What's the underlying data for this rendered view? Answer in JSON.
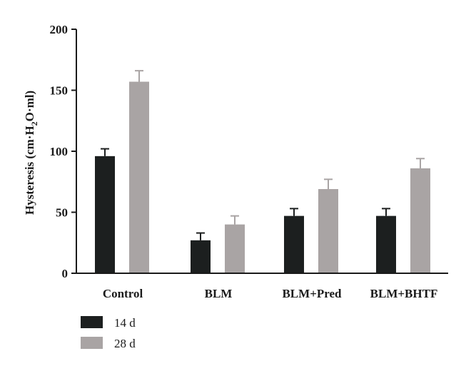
{
  "chart_data": {
    "type": "bar",
    "categories": [
      "Control",
      "BLM",
      "BLM+Pred",
      "BLM+BHTF"
    ],
    "series": [
      {
        "name": "14 d",
        "values": [
          96,
          27,
          47,
          47
        ],
        "errors": [
          6,
          6,
          6,
          6
        ],
        "color": "#1c1f1f"
      },
      {
        "name": "28 d",
        "values": [
          157,
          40,
          69,
          86
        ],
        "errors": [
          9,
          7,
          8,
          8
        ],
        "color": "#a9a4a4"
      }
    ],
    "ylabel": {
      "pre": "Hysteresis (cm·H",
      "sub": "2",
      "post": "O·ml)"
    },
    "ylim": [
      0,
      200
    ],
    "yticks": [
      "0",
      "50",
      "100",
      "150",
      "200"
    ],
    "grid": false,
    "legend": "bottom-left"
  }
}
